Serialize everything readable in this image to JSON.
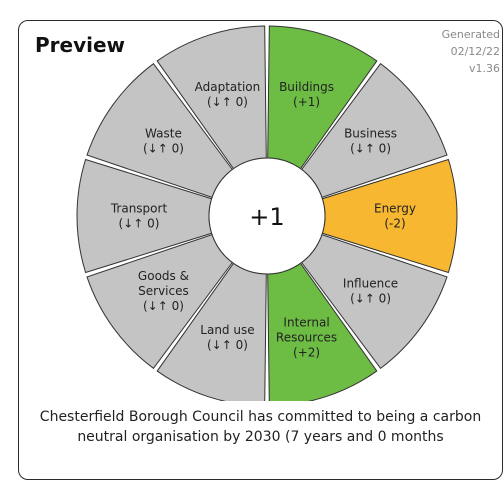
{
  "panel": {
    "title": "Preview",
    "meta": {
      "line1": "Generated",
      "line2": "02/12/22",
      "line3": "v1.36"
    },
    "center_score": "+1",
    "description": "Chesterfield Borough Council has committed to being a carbon neutral organisation by 2030 (7 years and 0 months"
  },
  "colors": {
    "positive": "#6dbd45",
    "negative": "#f7b731",
    "neutral": "#c4c4c4"
  },
  "segments": [
    {
      "name": "Buildings",
      "lines": [
        "Buildings",
        "(+1)"
      ],
      "status": "positive"
    },
    {
      "name": "Business",
      "lines": [
        "Business",
        "(↓↑ 0)"
      ],
      "status": "neutral"
    },
    {
      "name": "Energy",
      "lines": [
        "Energy",
        "(-2)"
      ],
      "status": "negative"
    },
    {
      "name": "Influence",
      "lines": [
        "Influence",
        "(↓↑ 0)"
      ],
      "status": "neutral"
    },
    {
      "name": "Internal Resources",
      "lines": [
        "Internal",
        "Resources",
        "(+2)"
      ],
      "status": "positive"
    },
    {
      "name": "Land use",
      "lines": [
        "Land use",
        "(↓↑ 0)"
      ],
      "status": "neutral"
    },
    {
      "name": "Goods & Services",
      "lines": [
        "Goods &",
        "Services",
        "(↓↑ 0)"
      ],
      "status": "neutral"
    },
    {
      "name": "Transport",
      "lines": [
        "Transport",
        "(↓↑ 0)"
      ],
      "status": "neutral"
    },
    {
      "name": "Waste",
      "lines": [
        "Waste",
        "(↓↑ 0)"
      ],
      "status": "neutral"
    },
    {
      "name": "Adaptation",
      "lines": [
        "Adaptation",
        "(↓↑ 0)"
      ],
      "status": "neutral"
    }
  ]
}
